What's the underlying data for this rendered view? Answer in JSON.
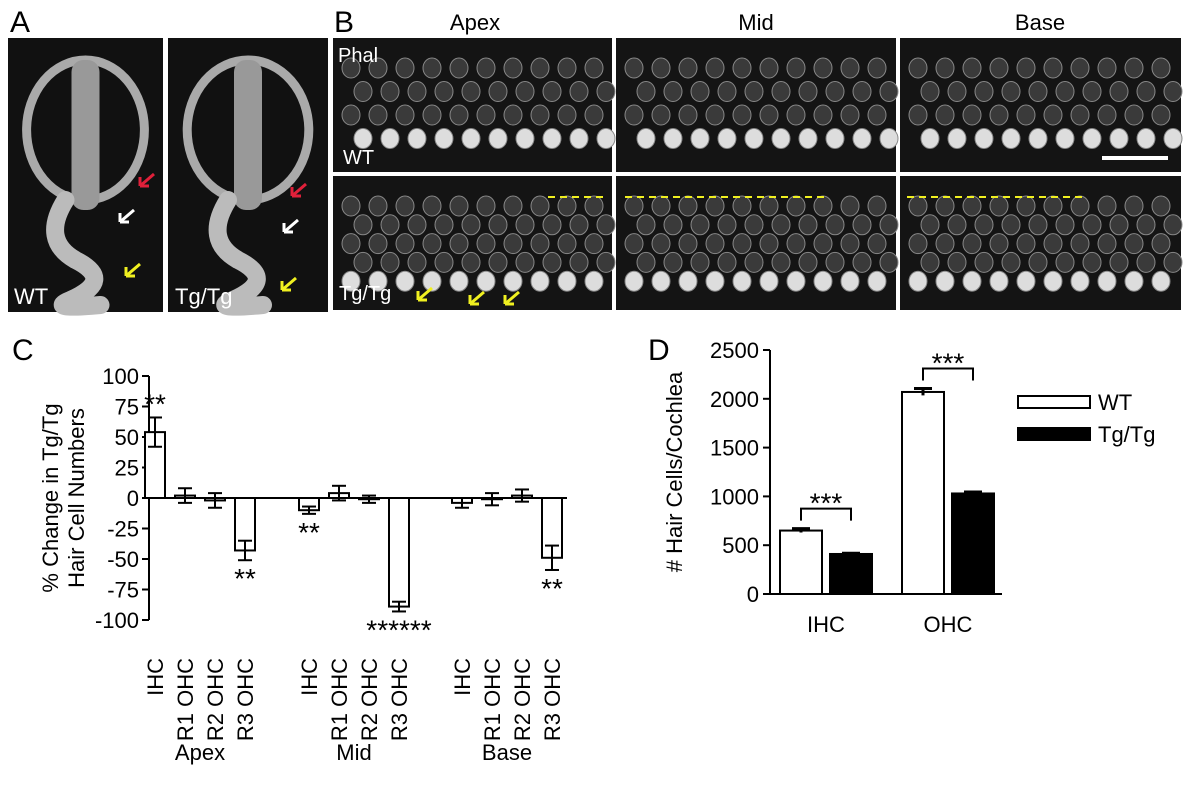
{
  "panel_a": {
    "label": "A",
    "images": [
      "WT",
      "Tg/Tg"
    ]
  },
  "panel_b": {
    "label": "B",
    "columns": [
      "Apex",
      "Mid",
      "Base"
    ],
    "stain": "Phal",
    "rows": [
      "WT",
      "Tg/Tg"
    ]
  },
  "chart_data": [
    {
      "type": "bar",
      "panel": "C",
      "ylabel": [
        "% Change in Tg/Tg",
        "Hair Cell Numbers"
      ],
      "categories": [
        "IHC",
        "R1 OHC",
        "R2 OHC",
        "R3 OHC",
        "IHC",
        "R1 OHC",
        "R2 OHC",
        "R3 OHC",
        "IHC",
        "R1 OHC",
        "R2 OHC",
        "R3 OHC"
      ],
      "groups": [
        "Apex",
        "Mid",
        "Base"
      ],
      "values": [
        54,
        2,
        -2,
        -43,
        -10,
        4,
        -1,
        -89,
        -4,
        -1,
        2,
        -49
      ],
      "errors": [
        12,
        6,
        6,
        8,
        3,
        6,
        3,
        4,
        4,
        5,
        5,
        10
      ],
      "color": "#ffffff",
      "ylim": [
        -100,
        100
      ],
      "yticks": [
        -100,
        -75,
        -50,
        -25,
        0,
        25,
        50,
        75,
        100
      ],
      "annotations": [
        {
          "text": "**",
          "category": 0
        },
        {
          "text": "**",
          "category": 3
        },
        {
          "text": "**",
          "category": 4
        },
        {
          "text": "******",
          "category": 7
        },
        {
          "text": "**",
          "category": 11
        }
      ]
    },
    {
      "type": "grouped_bar",
      "panel": "D",
      "ylabel": "# Hair Cells/Cochlea",
      "categories": [
        "IHC",
        "OHC"
      ],
      "series": [
        {
          "name": "WT",
          "color": "#ffffff",
          "values": [
            650,
            2070
          ],
          "errors": [
            20,
            35
          ]
        },
        {
          "name": "Tg/Tg",
          "color": "#000000",
          "values": [
            410,
            1030
          ],
          "errors": [
            8,
            15
          ]
        }
      ],
      "ylim": [
        0,
        2500
      ],
      "yticks": [
        0,
        500,
        1000,
        1500,
        2000,
        2500
      ],
      "annotations": [
        {
          "text": "***",
          "category": 0
        },
        {
          "text": "***",
          "category": 1
        }
      ]
    }
  ]
}
